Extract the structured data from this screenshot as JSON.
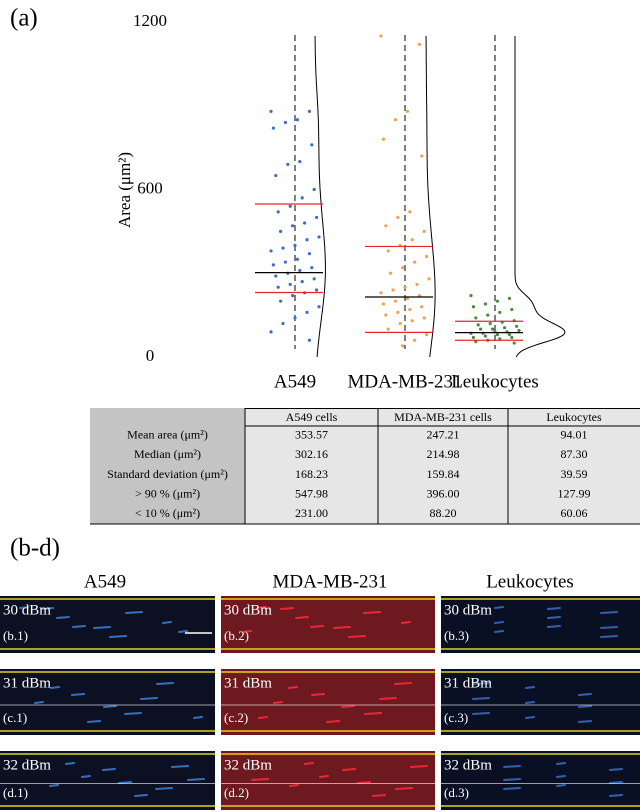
{
  "panel_a_label": "(a)",
  "chart_data": {
    "type": "strip",
    "ylabel": "Area (μm²)",
    "ylim": [
      0,
      1200
    ],
    "yticks": [
      0,
      600,
      1200
    ],
    "categories": [
      "A549",
      "MDA-MB-231",
      "Leukocytes"
    ],
    "median_color": "#000000",
    "percentile_color": "#e8262a",
    "groups": [
      {
        "color": "#3b6fc4",
        "median": 302.16,
        "p90": 547.98,
        "p10": 231.0,
        "values": [
          880,
          880,
          850,
          840,
          820,
          760,
          700,
          690,
          650,
          600,
          570,
          540,
          520,
          500,
          480,
          470,
          450,
          430,
          420,
          400,
          390,
          380,
          370,
          350,
          340,
          330,
          320,
          310,
          300,
          290,
          280,
          270,
          260,
          250,
          240,
          230,
          220,
          200,
          180,
          160,
          140,
          120,
          90,
          60
        ]
      },
      {
        "color": "#f5a04a",
        "median": 214.98,
        "p90": 396.0,
        "p10": 88.2,
        "values": [
          1150,
          1120,
          880,
          850,
          780,
          720,
          520,
          500,
          470,
          450,
          420,
          400,
          380,
          360,
          340,
          320,
          300,
          280,
          260,
          250,
          240,
          230,
          220,
          210,
          200,
          190,
          180,
          170,
          160,
          150,
          140,
          130,
          120,
          100,
          80,
          60,
          40
        ]
      },
      {
        "color": "#4a8a3a",
        "median": 87.3,
        "p90": 127.99,
        "p10": 60.06,
        "values": [
          220,
          210,
          200,
          190,
          180,
          170,
          160,
          150,
          140,
          130,
          125,
          120,
          115,
          110,
          105,
          100,
          100,
          95,
          90,
          90,
          85,
          85,
          80,
          80,
          75,
          70,
          70,
          65,
          60,
          55,
          50
        ]
      }
    ]
  },
  "table": {
    "columns": [
      "A549 cells",
      "MDA-MB-231 cells",
      "Leukocytes"
    ],
    "rows": [
      {
        "label": "Mean area (μm²)",
        "values": [
          "353.57",
          "247.21",
          "94.01"
        ]
      },
      {
        "label": "Median (μm²)",
        "values": [
          "302.16",
          "214.98",
          "87.30"
        ]
      },
      {
        "label": "Standard deviation (μm²)",
        "values": [
          "168.23",
          "159.84",
          "39.59"
        ]
      },
      {
        "label": "> 90 % (μm²)",
        "values": [
          "547.98",
          "396.00",
          "127.99"
        ]
      },
      {
        "label": "< 10 % (μm²)",
        "values": [
          "231.00",
          "88.20",
          "60.06"
        ]
      }
    ]
  },
  "panel_bd": {
    "label": "(b-d)",
    "columns": [
      "A549",
      "MDA-MB-231",
      "Leukocytes"
    ],
    "rows": [
      {
        "power": "30 dBm",
        "panels": [
          "(b.1)",
          "(b.2)",
          "(b.3)"
        ]
      },
      {
        "power": "31 dBm",
        "panels": [
          "(c.1)",
          "(c.2)",
          "(c.3)"
        ]
      },
      {
        "power": "32 dBm",
        "panels": [
          "(d.1)",
          "(d.2)",
          "(d.3)"
        ]
      }
    ]
  }
}
